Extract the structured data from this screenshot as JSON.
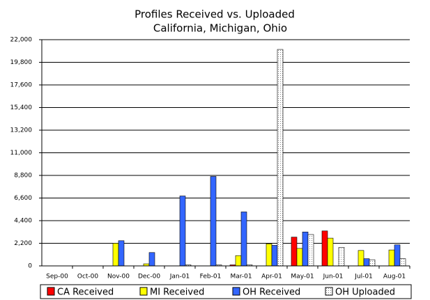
{
  "chart_data": {
    "type": "bar",
    "title": "Profiles Received vs. Uploaded",
    "subtitle": "California, Michigan, Ohio",
    "categories": [
      "Sep-00",
      "Oct-00",
      "Nov-00",
      "Dec-00",
      "Jan-01",
      "Feb-01",
      "Mar-01",
      "Apr-01",
      "May-01",
      "Jun-01",
      "Jul-01",
      "Aug-01"
    ],
    "series": [
      {
        "name": "CA Received",
        "color": "#ff0000",
        "values": [
          0,
          0,
          0,
          0,
          0,
          0,
          100,
          0,
          2800,
          3400,
          0,
          0
        ]
      },
      {
        "name": "MI Received",
        "color": "#ffff00",
        "values": [
          0,
          0,
          2200,
          200,
          0,
          0,
          1000,
          2150,
          1700,
          2700,
          1500,
          1550
        ]
      },
      {
        "name": "OH Received",
        "color": "#3366ff",
        "values": [
          0,
          0,
          2450,
          1300,
          6800,
          8700,
          5250,
          2000,
          3300,
          0,
          700,
          2050
        ]
      },
      {
        "name": "OH Uploaded",
        "color": "#ffffff",
        "pattern": "dots",
        "values": [
          0,
          0,
          0,
          0,
          100,
          100,
          100,
          21050,
          3050,
          1800,
          600,
          700
        ]
      }
    ],
    "ylim": [
      0,
      22000
    ],
    "yticks": [
      0,
      {
        "value": 2200,
        "label": "2,200"
      },
      {
        "value": 4400,
        "label": "4,400"
      },
      {
        "value": 6600,
        "label": "6,600"
      },
      {
        "value": 8800,
        "label": "8,800"
      },
      {
        "value": 11000,
        "label": "11,000"
      },
      {
        "value": 13200,
        "label": "13,200"
      },
      {
        "value": 15400,
        "label": "15,400"
      },
      {
        "value": 17600,
        "label": "17,600"
      },
      {
        "value": 19800,
        "label": "19,800"
      },
      {
        "value": 22000,
        "label": "22,000"
      }
    ],
    "grid": true
  }
}
